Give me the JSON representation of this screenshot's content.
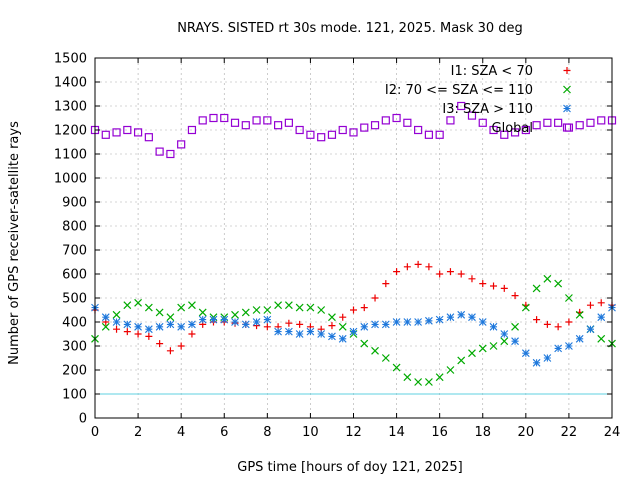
{
  "chart_data": {
    "type": "scatter",
    "title": "NRAYS. SISTED rt 30s mode. 121, 2025. Mask 30 deg",
    "xlabel": "GPS time [hours of doy 121, 2025]",
    "ylabel": "Number of GPS receiver-satellite rays",
    "xlim": [
      0,
      24
    ],
    "ylim": [
      0,
      1500
    ],
    "xticks": [
      0,
      2,
      4,
      6,
      8,
      10,
      12,
      14,
      16,
      18,
      20,
      22,
      24
    ],
    "yticks": [
      0,
      100,
      200,
      300,
      400,
      500,
      600,
      700,
      800,
      900,
      1000,
      1100,
      1200,
      1300,
      1400,
      1500
    ],
    "grid": true,
    "legend_position": "top-right",
    "reference_line": {
      "y": 100,
      "color": "#5fd0e0"
    },
    "series": [
      {
        "name": "I1: SZA < 70",
        "color": "#ee0000",
        "marker": "plus",
        "x": [
          0,
          0.5,
          1,
          1.5,
          2,
          2.5,
          3,
          3.5,
          4,
          4.5,
          5,
          5.5,
          6,
          6.5,
          7,
          7.5,
          8,
          8.5,
          9,
          9.5,
          10,
          10.5,
          11,
          11.5,
          12,
          12.5,
          13,
          13.5,
          14,
          14.5,
          15,
          15.5,
          16,
          16.5,
          17,
          17.5,
          18,
          18.5,
          19,
          19.5,
          20,
          20.5,
          21,
          21.5,
          22,
          22.5,
          23,
          23.5,
          24
        ],
        "y": [
          450,
          400,
          370,
          360,
          350,
          340,
          310,
          280,
          300,
          350,
          390,
          400,
          400,
          395,
          390,
          385,
          380,
          380,
          395,
          390,
          380,
          370,
          385,
          420,
          450,
          460,
          500,
          560,
          610,
          630,
          640,
          630,
          600,
          610,
          600,
          580,
          560,
          550,
          540,
          510,
          470,
          410,
          390,
          380,
          400,
          440,
          470,
          480,
          470
        ]
      },
      {
        "name": "I2: 70 <= SZA <= 110",
        "color": "#00aa00",
        "marker": "cross",
        "x": [
          0,
          0.5,
          1,
          1.5,
          2,
          2.5,
          3,
          3.5,
          4,
          4.5,
          5,
          5.5,
          6,
          6.5,
          7,
          7.5,
          8,
          8.5,
          9,
          9.5,
          10,
          10.5,
          11,
          11.5,
          12,
          12.5,
          13,
          13.5,
          14,
          14.5,
          15,
          15.5,
          16,
          16.5,
          17,
          17.5,
          18,
          18.5,
          19,
          19.5,
          20,
          20.5,
          21,
          21.5,
          22,
          22.5,
          23,
          23.5,
          24
        ],
        "y": [
          330,
          380,
          430,
          470,
          480,
          460,
          440,
          420,
          460,
          470,
          440,
          420,
          420,
          430,
          440,
          450,
          450,
          470,
          470,
          460,
          460,
          450,
          420,
          380,
          350,
          310,
          280,
          250,
          210,
          170,
          150,
          150,
          170,
          200,
          240,
          270,
          290,
          300,
          320,
          380,
          460,
          540,
          580,
          560,
          500,
          430,
          370,
          330,
          310
        ]
      },
      {
        "name": "I3: SZA > 110",
        "color": "#1e78dc",
        "marker": "star",
        "x": [
          0,
          0.5,
          1,
          1.5,
          2,
          2.5,
          3,
          3.5,
          4,
          4.5,
          5,
          5.5,
          6,
          6.5,
          7,
          7.5,
          8,
          8.5,
          9,
          9.5,
          10,
          10.5,
          11,
          11.5,
          12,
          12.5,
          13,
          13.5,
          14,
          14.5,
          15,
          15.5,
          16,
          16.5,
          17,
          17.5,
          18,
          18.5,
          19,
          19.5,
          20,
          20.5,
          21,
          21.5,
          22,
          22.5,
          23,
          23.5,
          24
        ],
        "y": [
          460,
          420,
          400,
          390,
          380,
          370,
          380,
          390,
          380,
          390,
          410,
          410,
          410,
          400,
          390,
          400,
          410,
          360,
          360,
          350,
          360,
          350,
          340,
          330,
          360,
          380,
          390,
          390,
          400,
          400,
          400,
          405,
          410,
          420,
          430,
          420,
          400,
          380,
          350,
          320,
          270,
          230,
          250,
          290,
          300,
          330,
          370,
          420,
          460
        ]
      },
      {
        "name": "Global",
        "color": "#9400d3",
        "marker": "square",
        "x": [
          0,
          0.5,
          1,
          1.5,
          2,
          2.5,
          3,
          3.5,
          4,
          4.5,
          5,
          5.5,
          6,
          6.5,
          7,
          7.5,
          8,
          8.5,
          9,
          9.5,
          10,
          10.5,
          11,
          11.5,
          12,
          12.5,
          13,
          13.5,
          14,
          14.5,
          15,
          15.5,
          16,
          16.5,
          17,
          17.5,
          18,
          18.5,
          19,
          19.5,
          20,
          20.5,
          21,
          21.5,
          22,
          22.5,
          23,
          23.5,
          24
        ],
        "y": [
          1200,
          1180,
          1190,
          1200,
          1190,
          1170,
          1110,
          1100,
          1140,
          1200,
          1240,
          1250,
          1250,
          1230,
          1220,
          1240,
          1240,
          1220,
          1230,
          1200,
          1180,
          1170,
          1180,
          1200,
          1190,
          1210,
          1220,
          1240,
          1250,
          1230,
          1200,
          1180,
          1180,
          1240,
          1300,
          1260,
          1230,
          1200,
          1180,
          1190,
          1200,
          1220,
          1230,
          1230,
          1210,
          1220,
          1230,
          1240,
          1240
        ]
      }
    ]
  }
}
